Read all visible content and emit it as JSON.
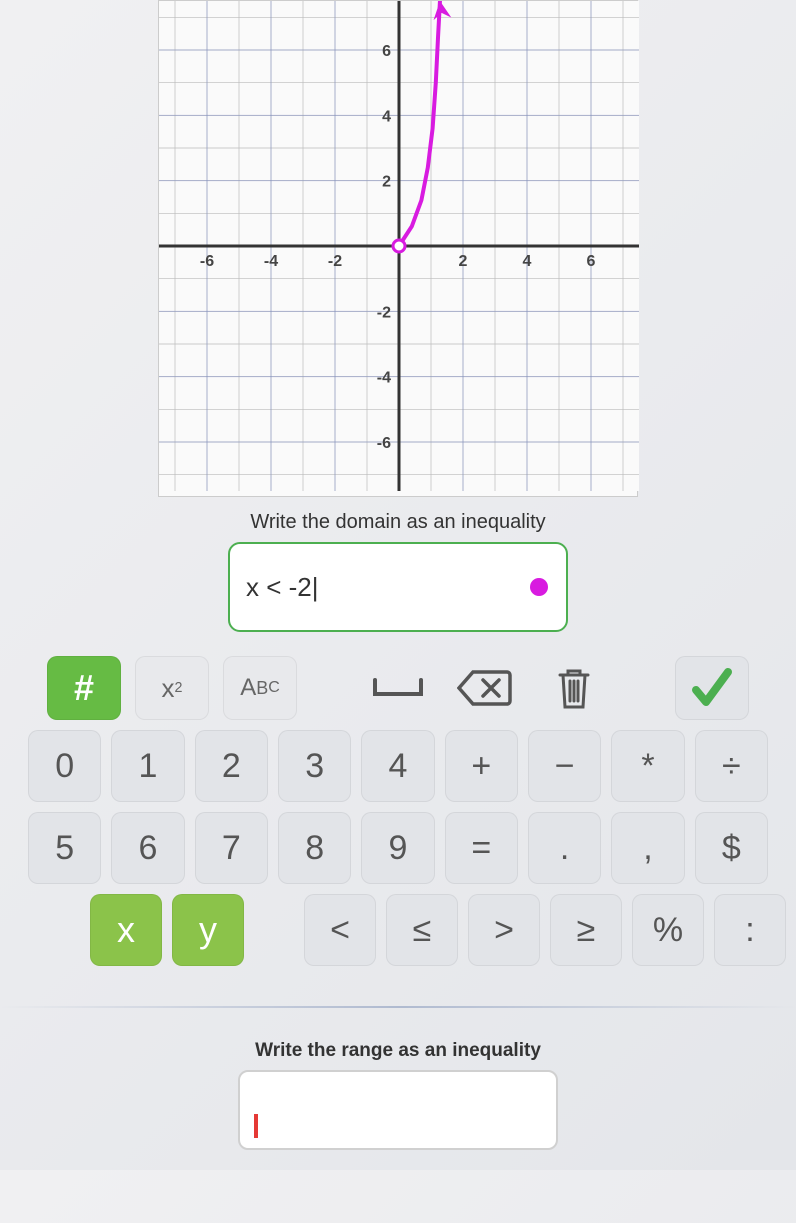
{
  "graph": {
    "xlim": [
      -7.5,
      7.5
    ],
    "ylim": [
      -7.5,
      7.5
    ],
    "major_step": 2,
    "minor_step": 1,
    "x_ticks": [
      -6,
      -4,
      -2,
      2,
      4,
      6
    ],
    "y_ticks": [
      -6,
      -4,
      -2,
      2,
      4,
      6
    ],
    "axis_color": "#333333",
    "minor_grid_color": "#bbbbbb",
    "major_grid_color": "#7b8bc4",
    "background": "#fafafa",
    "tick_fontsize": 16,
    "tick_color": "#444444",
    "curve": {
      "color": "#d81be0",
      "width": 4,
      "open_point": {
        "x": 0,
        "y": 0,
        "fill": "#ffffff"
      },
      "points": [
        [
          0,
          0
        ],
        [
          0.4,
          0.6
        ],
        [
          0.7,
          1.4
        ],
        [
          0.9,
          2.4
        ],
        [
          1.05,
          3.6
        ],
        [
          1.15,
          5.0
        ],
        [
          1.22,
          6.4
        ],
        [
          1.28,
          7.5
        ]
      ],
      "arrow_at": [
        1.28,
        7.5
      ]
    }
  },
  "prompt1": "Write the domain as an inequality",
  "answer1": {
    "text": "x < -2|",
    "border_color": "#4caf50",
    "dot_color": "#d81be0"
  },
  "modes": {
    "hash": "#",
    "x2_base": "x",
    "x2_sup": "2",
    "abc_a": "A",
    "abc_b": "B",
    "abc_c": "C"
  },
  "keypad": {
    "row1": [
      "0",
      "1",
      "2",
      "3",
      "4",
      "+",
      "−",
      "*",
      "÷"
    ],
    "row2": [
      "5",
      "6",
      "7",
      "8",
      "9",
      "=",
      ".",
      ",",
      "$"
    ],
    "row3_vars": [
      "x",
      "y"
    ],
    "row3_ops": [
      "<",
      "≤",
      ">",
      "≥",
      "%",
      ":"
    ]
  },
  "colors": {
    "key_bg": "#e2e4e8",
    "key_fg": "#555555",
    "var_bg": "#8bc34a",
    "hash_bg": "#66bb44",
    "check_color": "#4caf50",
    "icon_stroke": "#555555"
  },
  "prompt2": "Write the range as an inequality"
}
